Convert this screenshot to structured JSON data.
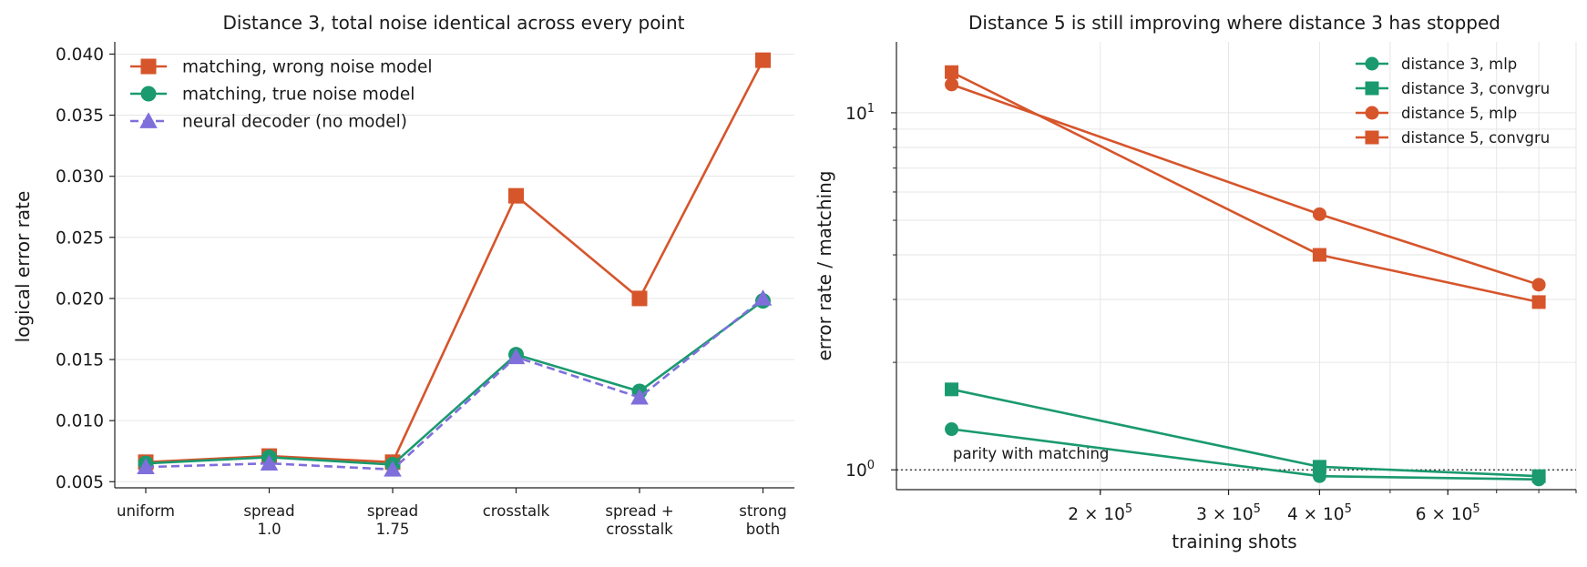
{
  "chart_data": [
    {
      "type": "line",
      "title": "Distance 3, total noise identical across every point",
      "xlabel": "",
      "ylabel": "logical error rate",
      "categories": [
        [
          "uniform"
        ],
        [
          "spread",
          "1.0"
        ],
        [
          "spread",
          "1.75"
        ],
        [
          "crosstalk"
        ],
        [
          "spread +",
          "crosstalk"
        ],
        [
          "strong",
          "both"
        ]
      ],
      "ylim": [
        0.0045,
        0.041
      ],
      "yticks": [
        "0.005",
        "0.010",
        "0.015",
        "0.020",
        "0.025",
        "0.030",
        "0.035",
        "0.040"
      ],
      "grid": "horizontal",
      "legend": "top-left",
      "series": [
        {
          "name": "matching, wrong noise model",
          "values": [
            0.0066,
            0.0071,
            0.0066,
            0.0284,
            0.02,
            0.0395
          ],
          "color": "#d6552b",
          "marker": "square",
          "dash": "solid"
        },
        {
          "name": "matching, true noise model",
          "values": [
            0.0065,
            0.007,
            0.0064,
            0.0154,
            0.0124,
            0.0198
          ],
          "color": "#1a9a6e",
          "marker": "circle",
          "dash": "solid"
        },
        {
          "name": "neural decoder (no model)",
          "values": [
            0.0062,
            0.0065,
            0.006,
            0.0152,
            0.0119,
            0.02
          ],
          "color": "#7f6fdb",
          "marker": "triangle",
          "dash": "dashed"
        }
      ]
    },
    {
      "type": "line",
      "title": "Distance 5 is still improving where distance 3 has stopped",
      "xlabel": "training shots",
      "ylabel": "error rate / matching",
      "xscale": "log",
      "yscale": "log",
      "xlim": [
        105000,
        900000
      ],
      "ylim": [
        0.88,
        15.8
      ],
      "xticks": [
        {
          "value": 200000,
          "mantissa": "2",
          "exponent": "5"
        },
        {
          "value": 300000,
          "mantissa": "3",
          "exponent": "5"
        },
        {
          "value": 400000,
          "mantissa": "4",
          "exponent": "5"
        },
        {
          "value": 600000,
          "mantissa": "6",
          "exponent": "5"
        }
      ],
      "yticks": [
        {
          "value": 1,
          "base": "10",
          "exponent": "0"
        },
        {
          "value": 10,
          "base": "10",
          "exponent": "1"
        }
      ],
      "grid": "both",
      "legend": "top-right",
      "reference_line": {
        "y": 1.0,
        "label": "parity with matching"
      },
      "x": [
        125000,
        400000,
        800000
      ],
      "series": [
        {
          "name": "distance 3, mlp",
          "values": [
            1.3,
            0.96,
            0.94
          ],
          "color": "#1a9a6e",
          "marker": "circle"
        },
        {
          "name": "distance 3, convgru",
          "values": [
            1.68,
            1.02,
            0.96
          ],
          "color": "#1a9a6e",
          "marker": "square"
        },
        {
          "name": "distance 5, mlp",
          "values": [
            12.0,
            5.2,
            3.3
          ],
          "color": "#d6552b",
          "marker": "circle"
        },
        {
          "name": "distance 5, convgru",
          "values": [
            13.0,
            4.0,
            2.95
          ],
          "color": "#d6552b",
          "marker": "square"
        }
      ]
    }
  ]
}
